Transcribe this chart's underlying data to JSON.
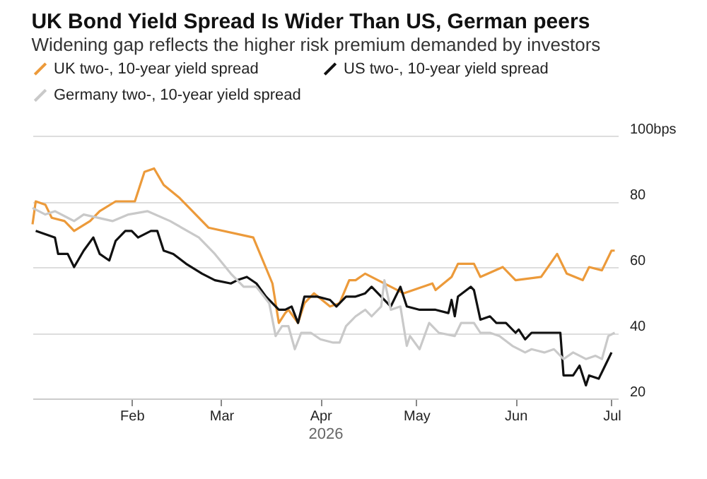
{
  "chart_data": {
    "type": "line",
    "title": "UK Bond Yield Spread Is Wider Than US, German peers",
    "subtitle": "Widening gap reflects the higher risk premium demanded by investors",
    "xlabel": "2026",
    "xlim": [
      "2026-01-01",
      "2026-07-03"
    ],
    "xticks": [
      {
        "value": "2026-02-01",
        "label": "Feb"
      },
      {
        "value": "2026-03-01",
        "label": "Mar"
      },
      {
        "value": "2026-04-01",
        "label": "Apr"
      },
      {
        "value": "2026-05-01",
        "label": "May"
      },
      {
        "value": "2026-06-01",
        "label": "Jun"
      },
      {
        "value": "2026-07-01",
        "label": "Jul"
      }
    ],
    "ylim": [
      20,
      100
    ],
    "yticks": [
      20,
      40,
      60,
      80,
      {
        "value": 100,
        "label": "100bps"
      }
    ],
    "grid": "y",
    "legend": "top left",
    "line_style": "solid",
    "marker": "none",
    "series": [
      {
        "name": "UK two-, 10-year yield spread",
        "color": "#ec9a3a",
        "x": [
          "2026-01-01",
          "2026-01-02",
          "2026-01-05",
          "2026-01-07",
          "2026-01-11",
          "2026-01-13",
          "2026-01-14",
          "2026-01-19",
          "2026-01-22",
          "2026-01-27",
          "2026-02-02",
          "2026-02-05",
          "2026-02-08",
          "2026-02-11",
          "2026-02-16",
          "2026-02-18",
          "2026-02-25",
          "2026-03-11",
          "2026-03-17",
          "2026-03-19",
          "2026-03-21",
          "2026-03-22",
          "2026-03-25",
          "2026-03-27",
          "2026-03-30",
          "2026-04-04",
          "2026-04-07",
          "2026-04-10",
          "2026-04-12",
          "2026-04-15",
          "2026-04-27",
          "2026-05-06",
          "2026-05-07",
          "2026-05-12",
          "2026-05-14",
          "2026-05-19",
          "2026-05-21",
          "2026-05-28",
          "2026-06-01",
          "2026-06-09",
          "2026-06-14",
          "2026-06-17",
          "2026-06-22",
          "2026-06-24",
          "2026-06-28",
          "2026-07-01",
          "2026-07-02"
        ],
        "values": [
          73,
          80,
          79,
          75,
          74,
          72,
          71,
          74,
          77,
          80,
          80,
          89,
          90,
          85,
          81,
          79,
          72,
          69,
          55,
          43,
          46,
          47,
          43,
          49,
          52,
          48,
          49,
          56,
          56,
          58,
          52,
          55,
          53,
          57,
          61,
          61,
          57,
          60,
          56,
          57,
          64,
          58,
          56,
          60,
          59,
          65,
          65
        ]
      },
      {
        "name": "US two-, 10-year yield spread",
        "color": "#111111",
        "x": [
          "2026-01-02",
          "2026-01-05",
          "2026-01-08",
          "2026-01-09",
          "2026-01-12",
          "2026-01-14",
          "2026-01-17",
          "2026-01-20",
          "2026-01-22",
          "2026-01-25",
          "2026-01-27",
          "2026-01-30",
          "2026-02-01",
          "2026-02-03",
          "2026-02-07",
          "2026-02-09",
          "2026-02-11",
          "2026-02-14",
          "2026-02-18",
          "2026-02-23",
          "2026-02-27",
          "2026-03-04",
          "2026-03-06",
          "2026-03-09",
          "2026-03-12",
          "2026-03-15",
          "2026-03-17",
          "2026-03-19",
          "2026-03-21",
          "2026-03-23",
          "2026-03-25",
          "2026-03-27",
          "2026-03-31",
          "2026-04-04",
          "2026-04-06",
          "2026-04-09",
          "2026-04-12",
          "2026-04-15",
          "2026-04-17",
          "2026-04-20",
          "2026-04-23",
          "2026-04-26",
          "2026-04-28",
          "2026-05-02",
          "2026-05-07",
          "2026-05-11",
          "2026-05-12",
          "2026-05-13",
          "2026-05-14",
          "2026-05-18",
          "2026-05-19",
          "2026-05-21",
          "2026-05-24",
          "2026-05-26",
          "2026-05-29",
          "2026-06-01",
          "2026-06-02",
          "2026-06-04",
          "2026-06-06",
          "2026-06-08",
          "2026-06-11",
          "2026-06-15",
          "2026-06-16",
          "2026-06-19",
          "2026-06-21",
          "2026-06-23",
          "2026-06-24",
          "2026-06-27",
          "2026-06-29",
          "2026-07-01"
        ],
        "values": [
          71,
          70,
          69,
          64,
          64,
          60,
          65,
          69,
          64,
          62,
          68,
          71,
          71,
          69,
          71,
          71,
          65,
          64,
          61,
          58,
          56,
          55,
          56,
          57,
          55,
          51,
          49,
          47,
          47,
          48,
          43,
          51,
          51,
          50,
          48,
          51,
          51,
          52,
          54,
          51,
          48,
          54,
          48,
          47,
          47,
          46,
          50,
          45,
          51,
          54,
          53,
          44,
          45,
          43,
          43,
          40,
          41,
          38,
          40,
          40,
          40,
          40,
          27,
          27,
          30,
          24,
          27,
          26,
          30,
          34
        ]
      },
      {
        "name": "Germany two-, 10-year yield spread",
        "color": "#c9c9c9",
        "x": [
          "2026-01-01",
          "2026-01-05",
          "2026-01-08",
          "2026-01-12",
          "2026-01-14",
          "2026-01-17",
          "2026-01-26",
          "2026-01-31",
          "2026-02-06",
          "2026-02-13",
          "2026-02-22",
          "2026-02-27",
          "2026-03-04",
          "2026-03-08",
          "2026-03-12",
          "2026-03-16",
          "2026-03-18",
          "2026-03-20",
          "2026-03-22",
          "2026-03-24",
          "2026-03-26",
          "2026-03-29",
          "2026-04-01",
          "2026-04-05",
          "2026-04-07",
          "2026-04-09",
          "2026-04-12",
          "2026-04-15",
          "2026-04-17",
          "2026-04-20",
          "2026-04-21",
          "2026-04-23",
          "2026-04-26",
          "2026-04-28",
          "2026-04-29",
          "2026-05-02",
          "2026-05-05",
          "2026-05-08",
          "2026-05-13",
          "2026-05-15",
          "2026-05-19",
          "2026-05-21",
          "2026-05-24",
          "2026-05-27",
          "2026-05-31",
          "2026-06-04",
          "2026-06-06",
          "2026-06-10",
          "2026-06-13",
          "2026-06-16",
          "2026-06-19",
          "2026-06-23",
          "2026-06-26",
          "2026-06-28",
          "2026-06-30",
          "2026-07-02"
        ],
        "values": [
          78,
          76,
          77,
          75,
          74,
          76,
          74,
          76,
          77,
          74,
          69,
          64,
          58,
          54,
          54,
          49,
          39,
          42,
          42,
          35,
          40,
          40,
          38,
          37,
          37,
          42,
          45,
          47,
          45,
          48,
          56,
          47,
          48,
          36,
          39,
          35,
          43,
          40,
          39,
          43,
          43,
          40,
          40,
          39,
          36,
          34,
          35,
          34,
          35,
          32,
          34,
          32,
          33,
          32,
          39,
          40
        ]
      }
    ]
  }
}
